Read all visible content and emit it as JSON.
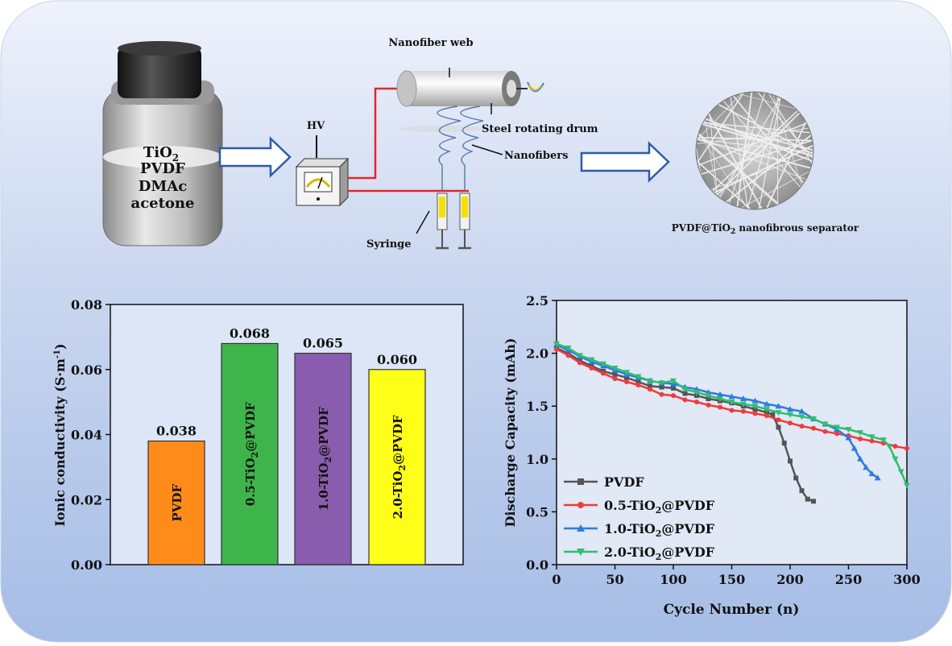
{
  "schematic": {
    "solution_lines": [
      "TiO",
      "PVDF",
      "DMAc",
      "acetone"
    ],
    "solution_sub": "2",
    "hv_label": "HV",
    "nanofiber_web_label": "Nanofiber web",
    "drum_label": "Steel rotating drum",
    "nanofibers_label": "Nanofibers",
    "syringe_label": "Syringe",
    "separator_label_pre": "PVDF@TiO",
    "separator_label_sub": "2",
    "separator_label_post": " nanofibrous  separator"
  },
  "chart_data": [
    {
      "type": "bar",
      "ylabel": "Ionic conductivity (S·m",
      "ylabel_sup": "-1",
      "ylabel_close": ")",
      "ylim": [
        0,
        0.08
      ],
      "yticks": [
        "0.00",
        "0.02",
        "0.04",
        "0.06",
        "0.08"
      ],
      "ytick_values": [
        0,
        0.02,
        0.04,
        0.06,
        0.08
      ],
      "categories": [
        "PVDF",
        "0.5-TiO2@PVDF",
        "1.0-TiO2@PVDF",
        "2.0-TiO2@PVDF"
      ],
      "bars": [
        {
          "pre": "PVDF",
          "sub": "",
          "post": "",
          "value": 0.038,
          "label": "0.038",
          "color": "#ff8c1a"
        },
        {
          "pre": "0.5-TiO",
          "sub": "2",
          "post": "@PVDF",
          "value": 0.068,
          "label": "0.068",
          "color": "#3db54a"
        },
        {
          "pre": "1.0-TiO",
          "sub": "2",
          "post": "@PVDF",
          "value": 0.065,
          "label": "0.065",
          "color": "#8a5cad"
        },
        {
          "pre": "2.0-TiO",
          "sub": "2",
          "post": "@PVDF",
          "value": 0.06,
          "label": "0.060",
          "color": "#ffff1a"
        }
      ],
      "grid": false
    },
    {
      "type": "line",
      "xlabel": "Cycle Number (n)",
      "ylabel": "Discharge Capacity (mAh)",
      "xlim": [
        0,
        300
      ],
      "ylim": [
        0,
        2.5
      ],
      "xticks": [
        "0",
        "50",
        "100",
        "150",
        "200",
        "250",
        "300"
      ],
      "xtick_values": [
        0,
        50,
        100,
        150,
        200,
        250,
        300
      ],
      "yticks": [
        "0.0",
        "0.5",
        "1.0",
        "1.5",
        "2.0",
        "2.5"
      ],
      "ytick_values": [
        0,
        0.5,
        1.0,
        1.5,
        2.0,
        2.5
      ],
      "legend_position": "bottom-left",
      "series": [
        {
          "name": "PVDF",
          "pre": "PVDF",
          "sub": "",
          "post": "",
          "color": "#555555",
          "marker": "square",
          "x": [
            0,
            10,
            20,
            30,
            40,
            50,
            60,
            70,
            80,
            90,
            100,
            110,
            120,
            130,
            140,
            150,
            160,
            170,
            180,
            185,
            190,
            195,
            200,
            205,
            210,
            215,
            220
          ],
          "y": [
            2.05,
            2.0,
            1.93,
            1.88,
            1.83,
            1.8,
            1.77,
            1.73,
            1.69,
            1.68,
            1.67,
            1.62,
            1.6,
            1.57,
            1.55,
            1.53,
            1.5,
            1.47,
            1.44,
            1.42,
            1.3,
            1.15,
            0.98,
            0.82,
            0.7,
            0.62,
            0.6
          ]
        },
        {
          "name": "0.5-TiO2@PVDF",
          "pre": "0.5-TiO",
          "sub": "2",
          "post": "@PVDF",
          "color": "#ee3b3b",
          "marker": "circle",
          "x": [
            0,
            10,
            20,
            30,
            40,
            50,
            60,
            70,
            80,
            90,
            100,
            110,
            120,
            130,
            140,
            150,
            160,
            170,
            180,
            190,
            200,
            210,
            220,
            230,
            240,
            250,
            260,
            270,
            280,
            290,
            300
          ],
          "y": [
            2.04,
            1.98,
            1.91,
            1.86,
            1.81,
            1.76,
            1.73,
            1.7,
            1.66,
            1.61,
            1.6,
            1.56,
            1.54,
            1.51,
            1.49,
            1.46,
            1.45,
            1.43,
            1.41,
            1.37,
            1.34,
            1.31,
            1.29,
            1.26,
            1.24,
            1.22,
            1.19,
            1.17,
            1.15,
            1.12,
            1.1
          ]
        },
        {
          "name": "1.0-TiO2@PVDF",
          "pre": "1.0-TiO",
          "sub": "2",
          "post": "@PVDF",
          "color": "#2e7be0",
          "marker": "triangle-up",
          "x": [
            0,
            10,
            20,
            30,
            40,
            50,
            60,
            70,
            80,
            90,
            100,
            110,
            120,
            130,
            140,
            150,
            160,
            170,
            180,
            190,
            200,
            210,
            220,
            230,
            240,
            250,
            255,
            260,
            265,
            270,
            275
          ],
          "y": [
            2.08,
            2.03,
            1.97,
            1.92,
            1.88,
            1.84,
            1.8,
            1.77,
            1.74,
            1.72,
            1.71,
            1.68,
            1.66,
            1.63,
            1.61,
            1.59,
            1.57,
            1.55,
            1.52,
            1.5,
            1.47,
            1.45,
            1.38,
            1.33,
            1.28,
            1.2,
            1.1,
            1.0,
            0.92,
            0.86,
            0.82
          ]
        },
        {
          "name": "2.0-TiO2@PVDF",
          "pre": "2.0-TiO",
          "sub": "2",
          "post": "@PVDF",
          "color": "#2fbf6f",
          "marker": "triangle-down",
          "x": [
            0,
            10,
            20,
            30,
            40,
            50,
            60,
            70,
            80,
            90,
            100,
            110,
            120,
            130,
            140,
            150,
            160,
            170,
            180,
            190,
            200,
            210,
            220,
            230,
            240,
            250,
            260,
            270,
            280,
            285,
            290,
            295,
            300
          ],
          "y": [
            2.09,
            2.05,
            1.98,
            1.94,
            1.9,
            1.86,
            1.82,
            1.78,
            1.74,
            1.72,
            1.74,
            1.66,
            1.63,
            1.6,
            1.57,
            1.54,
            1.52,
            1.5,
            1.47,
            1.44,
            1.42,
            1.4,
            1.38,
            1.33,
            1.3,
            1.28,
            1.25,
            1.21,
            1.18,
            1.12,
            1.0,
            0.88,
            0.75
          ]
        }
      ]
    }
  ]
}
